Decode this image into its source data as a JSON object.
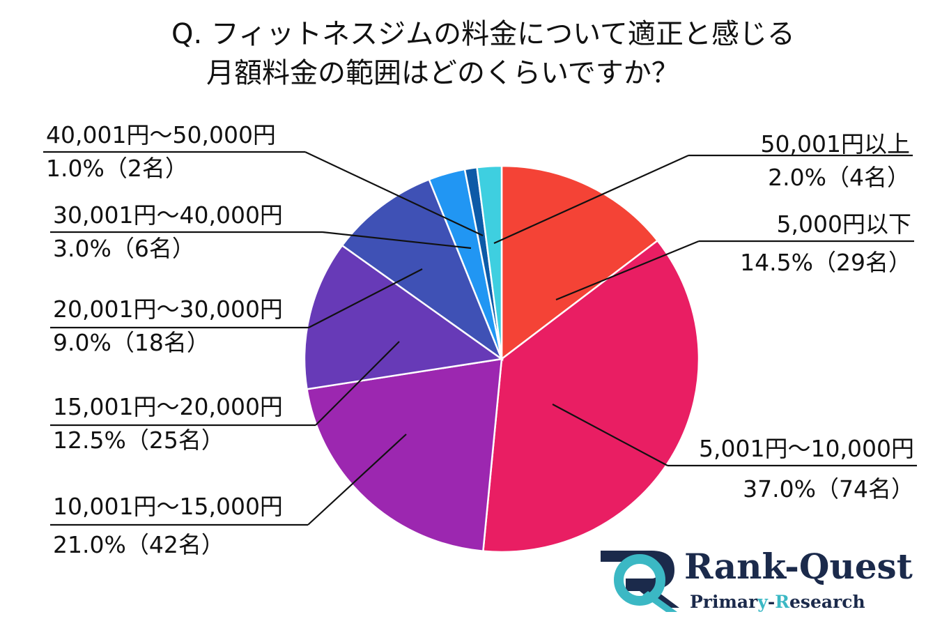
{
  "chart_data": {
    "type": "pie",
    "title_line1": "Q. フィットネスジムの料金について適正と感じる",
    "title_line2": "月額料金の範囲はどのくらいですか？",
    "slices": [
      {
        "label": "5,000円以下",
        "pct_text": "14.5%（29名）",
        "value": 14.5,
        "count": 29,
        "color": "#f44336"
      },
      {
        "label": "5,001円～10,000円",
        "pct_text": "37.0%（74名）",
        "value": 37.0,
        "count": 74,
        "color": "#e91e63"
      },
      {
        "label": "10,001円～15,000円",
        "pct_text": "21.0%（42名）",
        "value": 21.0,
        "count": 42,
        "color": "#9c27b0"
      },
      {
        "label": "15,001円～20,000円",
        "pct_text": "12.5%（25名）",
        "value": 12.5,
        "count": 25,
        "color": "#673ab7"
      },
      {
        "label": "20,001円～30,000円",
        "pct_text": "9.0%（18名）",
        "value": 9.0,
        "count": 18,
        "color": "#3f51b5"
      },
      {
        "label": "30,001円～40,000円",
        "pct_text": "3.0%（6名）",
        "value": 3.0,
        "count": 6,
        "color": "#2196f3"
      },
      {
        "label": "40,001円～50,000円",
        "pct_text": "1.0%（2名）",
        "value": 1.0,
        "count": 2,
        "color": "#0d5aa7"
      },
      {
        "label": "50,001円以上",
        "pct_text": "2.0%（4名）",
        "value": 2.0,
        "count": 4,
        "color": "#3ecfe0"
      }
    ]
  },
  "logo": {
    "name": "Rank-Quest",
    "sub_part1": "Primar",
    "sub_part2": "y",
    "sub_part3": "-",
    "sub_part4": "R",
    "sub_part5": "esearch",
    "mark_color_dark": "#1b2a4b",
    "mark_color_accent": "#3bb8c4"
  }
}
